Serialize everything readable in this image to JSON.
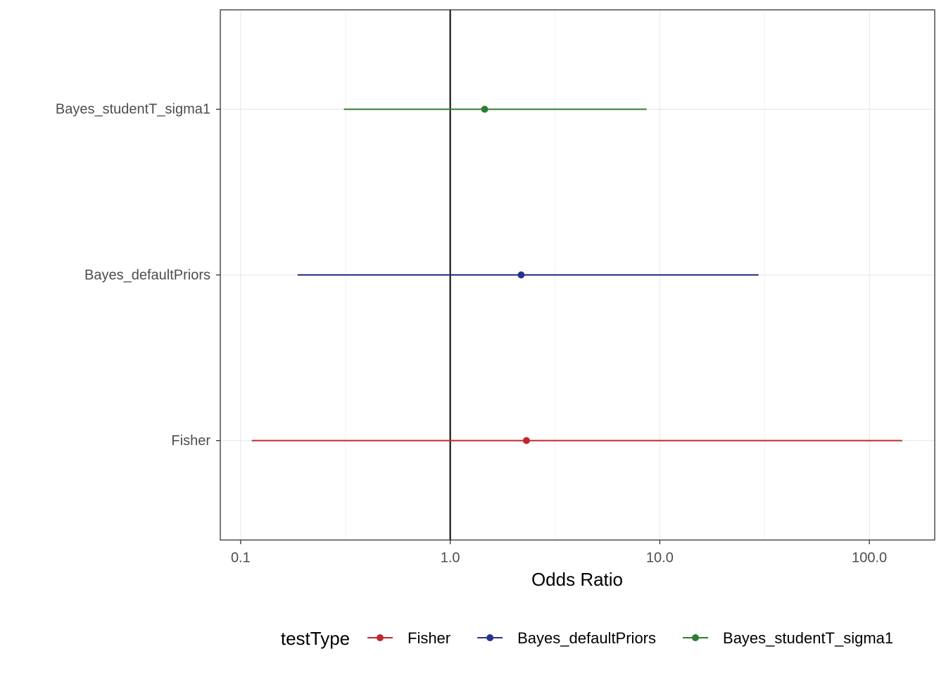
{
  "chart_data": {
    "type": "forest",
    "x_label": "Odds Ratio",
    "log_x": true,
    "grid": true,
    "legend_title": "testType",
    "legend_position": "bottom",
    "categories": [
      "Fisher",
      "Bayes_defaultPriors",
      "Bayes_studentT_sigma1"
    ],
    "series": [
      {
        "name": "Fisher",
        "color": "#c1272d",
        "value": 2.31,
        "lower": 0.113,
        "upper": 143.5
      },
      {
        "name": "Bayes_defaultPriors",
        "color": "#27348b",
        "value": 2.18,
        "lower": 0.187,
        "upper": 29.6
      },
      {
        "name": "Bayes_studentT_sigma1",
        "color": "#2e7d32",
        "value": 1.46,
        "lower": 0.311,
        "upper": 8.65
      }
    ],
    "reference_line": 1,
    "xlim": [
      0.08,
      205
    ],
    "xticks": [
      0.1,
      {
        "value": 1,
        "label": "1.0"
      },
      {
        "value": 10,
        "label": "10.0"
      },
      {
        "value": 100,
        "label": "100.0"
      }
    ]
  }
}
